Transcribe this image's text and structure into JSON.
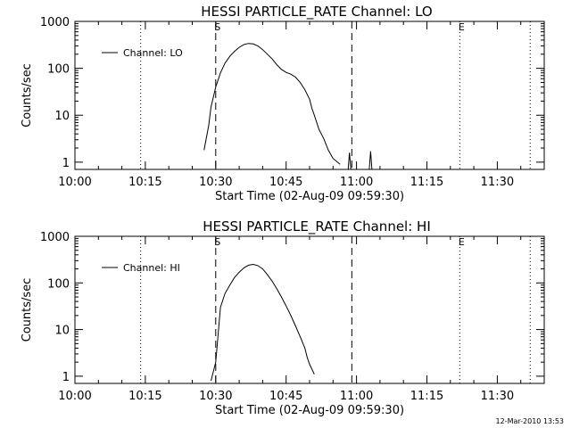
{
  "chart_data": [
    {
      "type": "line",
      "title": "HESSI PARTICLE_RATE Channel: LO",
      "xlabel": "Start Time (02-Aug-09 09:59:30)",
      "ylabel": "Counts/sec",
      "yscale": "log",
      "ylim": [
        0.7,
        1000
      ],
      "xlim": [
        "10:00",
        "11:40"
      ],
      "x_ticks": [
        "10:00",
        "10:15",
        "10:30",
        "10:45",
        "11:00",
        "11:15",
        "11:30"
      ],
      "y_ticks": [
        "1",
        "10",
        "100",
        "1000"
      ],
      "legend": {
        "placement": "top-left",
        "entries": [
          "Channel: LO"
        ]
      },
      "grid": false,
      "series": [
        {
          "name": "Channel: LO",
          "x": [
            "10:27:30",
            "10:28:30",
            "10:29:00",
            "10:30:00",
            "10:31:00",
            "10:32:00",
            "10:33:00",
            "10:34:00",
            "10:35:00",
            "10:36:00",
            "10:37:00",
            "10:38:00",
            "10:39:00",
            "10:40:00",
            "10:41:00",
            "10:42:00",
            "10:43:00",
            "10:44:00",
            "10:45:00",
            "10:46:00",
            "10:47:00",
            "10:48:00",
            "10:49:00",
            "10:50:00",
            "10:50:30",
            "10:51:00",
            "10:52:00",
            "10:53:00",
            "10:54:00",
            "10:55:00",
            "10:56:30"
          ],
          "y": [
            1.8,
            6,
            15,
            40,
            80,
            130,
            180,
            230,
            280,
            320,
            340,
            330,
            300,
            250,
            200,
            160,
            120,
            95,
            82,
            75,
            65,
            50,
            35,
            22,
            14,
            10,
            5,
            3.2,
            1.8,
            1.2,
            0.9
          ]
        }
      ],
      "spikes": [
        {
          "time": "10:58:30",
          "value": 1.6
        },
        {
          "time": "11:03:00",
          "value": 1.7
        }
      ],
      "markers": [
        {
          "time": "10:14",
          "style": "dotted",
          "label": ""
        },
        {
          "time": "10:30",
          "style": "dashed",
          "label": "S"
        },
        {
          "time": "10:59",
          "style": "dashed",
          "label": ""
        },
        {
          "time": "11:22",
          "style": "dotted",
          "label": "E"
        },
        {
          "time": "11:37",
          "style": "dotted",
          "label": ""
        }
      ]
    },
    {
      "type": "line",
      "title": "HESSI PARTICLE_RATE Channel: HI",
      "xlabel": "Start Time (02-Aug-09 09:59:30)",
      "ylabel": "Counts/sec",
      "yscale": "log",
      "ylim": [
        0.7,
        1000
      ],
      "xlim": [
        "10:00",
        "11:40"
      ],
      "x_ticks": [
        "10:00",
        "10:15",
        "10:30",
        "10:45",
        "11:00",
        "11:15",
        "11:30"
      ],
      "y_ticks": [
        "1",
        "10",
        "100",
        "1000"
      ],
      "legend": {
        "placement": "top-left",
        "entries": [
          "Channel: HI"
        ]
      },
      "grid": false,
      "series": [
        {
          "name": "Channel: HI",
          "x": [
            "10:29:00",
            "10:30:00",
            "10:31:00",
            "10:32:00",
            "10:33:00",
            "10:34:00",
            "10:35:00",
            "10:36:00",
            "10:37:00",
            "10:38:00",
            "10:39:00",
            "10:40:00",
            "10:41:00",
            "10:42:00",
            "10:43:00",
            "10:44:00",
            "10:45:00",
            "10:46:00",
            "10:47:00",
            "10:48:00",
            "10:49:00",
            "10:49:30",
            "10:50:00",
            "10:51:00"
          ],
          "y": [
            0.8,
            2,
            30,
            60,
            90,
            130,
            170,
            210,
            240,
            250,
            235,
            200,
            150,
            110,
            75,
            50,
            32,
            20,
            12,
            7,
            4,
            2.5,
            1.8,
            1.1
          ]
        }
      ],
      "markers": [
        {
          "time": "10:14",
          "style": "dotted",
          "label": ""
        },
        {
          "time": "10:30",
          "style": "dashed",
          "label": "S"
        },
        {
          "time": "10:59",
          "style": "dashed",
          "label": ""
        },
        {
          "time": "11:22",
          "style": "dotted",
          "label": "E"
        },
        {
          "time": "11:37",
          "style": "dotted",
          "label": ""
        }
      ]
    }
  ],
  "timestamp": "12-Mar-2010 13:53",
  "colors": {
    "line": "#000000",
    "background": "#ffffff"
  }
}
